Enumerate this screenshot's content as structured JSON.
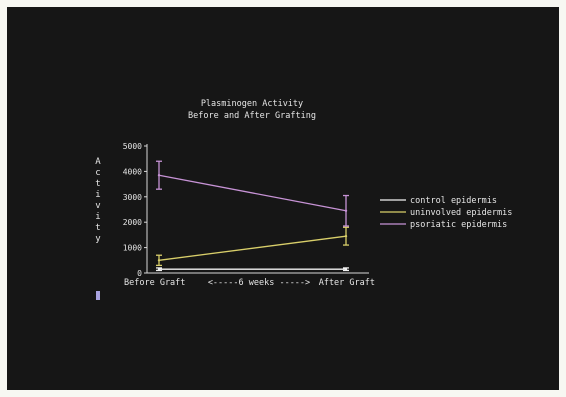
{
  "chart_data": {
    "type": "line",
    "title": "Plasminogen Activity",
    "subtitle": "Before and After Grafting",
    "ylabel": "Activity",
    "xlabel": "<-----6 weeks ----->",
    "categories": [
      "Before Graft",
      "After Graft"
    ],
    "ylim": [
      0,
      5000
    ],
    "yticks": [
      "0",
      "1000",
      "2000",
      "3000",
      "4000",
      "5000"
    ],
    "legend_position": "right",
    "series": [
      {
        "name": "control epidermis",
        "color": "#f2f2f2",
        "values": [
          150,
          150
        ],
        "errors": [
          50,
          50
        ]
      },
      {
        "name": "uninvolved epidermis",
        "color": "#d9cf6a",
        "values": [
          500,
          1450
        ],
        "errors": [
          200,
          350
        ]
      },
      {
        "name": "psoriatic epidermis",
        "color": "#c793d6",
        "values": [
          3850,
          2450
        ],
        "errors": [
          550,
          600
        ]
      }
    ]
  }
}
